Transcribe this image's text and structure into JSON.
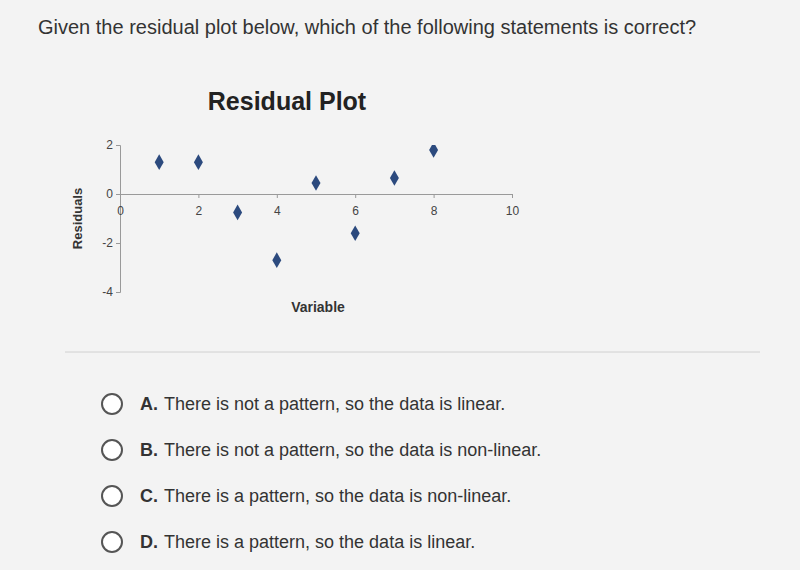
{
  "question": "Given the residual plot below, which of the following statements is correct?",
  "options": [
    {
      "letter": "A.",
      "text": "There is not a pattern, so the data is linear."
    },
    {
      "letter": "B.",
      "text": "There is not a pattern, so the data is non-linear."
    },
    {
      "letter": "C.",
      "text": "There is a pattern, so the data is non-linear."
    },
    {
      "letter": "D.",
      "text": "There is a pattern, so the data is linear."
    }
  ],
  "chart_data": {
    "type": "scatter",
    "title": "Residual Plot",
    "x_label": "Variable",
    "y_label": "Residuals",
    "x": [
      1,
      2,
      3,
      4,
      5,
      6,
      7,
      8
    ],
    "values": [
      1.3,
      1.3,
      -0.75,
      -2.7,
      0.45,
      -1.6,
      0.65,
      1.8
    ],
    "color": "#2c4a7e",
    "marker": "diamond",
    "xlim": [
      0,
      10
    ],
    "ylim": [
      -4,
      2
    ],
    "xticks": [
      0,
      2,
      4,
      6,
      8,
      10
    ],
    "yticks": [
      -4,
      -2,
      0,
      2
    ],
    "grid": false
  }
}
